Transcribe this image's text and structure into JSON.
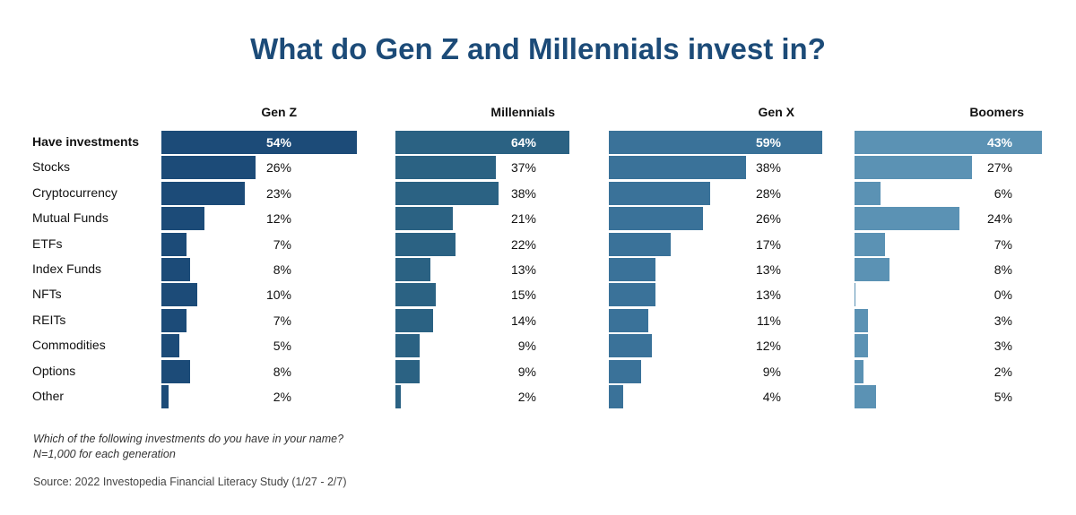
{
  "chart_data": {
    "type": "bar",
    "orientation": "horizontal",
    "title": "What do Gen Z and Millennials invest in?",
    "categories": [
      "Have investments",
      "Stocks",
      "Cryptocurrency",
      "Mutual Funds",
      "ETFs",
      "Index Funds",
      "NFTs",
      "REITs",
      "Commodities",
      "Options",
      "Other"
    ],
    "series": [
      {
        "name": "Gen Z",
        "color": "#1c4b78",
        "values": [
          54,
          26,
          23,
          12,
          7,
          8,
          10,
          7,
          5,
          8,
          2
        ]
      },
      {
        "name": "Millennials",
        "color": "#2b6283",
        "values": [
          64,
          37,
          38,
          21,
          22,
          13,
          15,
          14,
          9,
          9,
          2
        ]
      },
      {
        "name": "Gen X",
        "color": "#3a7299",
        "values": [
          59,
          38,
          28,
          26,
          17,
          13,
          13,
          11,
          12,
          9,
          4
        ]
      },
      {
        "name": "Boomers",
        "color": "#5b92b4",
        "values": [
          43,
          27,
          6,
          24,
          7,
          8,
          0,
          3,
          3,
          2,
          5
        ]
      }
    ],
    "value_format": "percent",
    "notes": [
      "Which of the following investments do you have in your name?",
      "N=1,000 for each generation"
    ],
    "source": "Source: 2022 Investopedia Financial Literacy Study (1/27 - 2/7)"
  }
}
